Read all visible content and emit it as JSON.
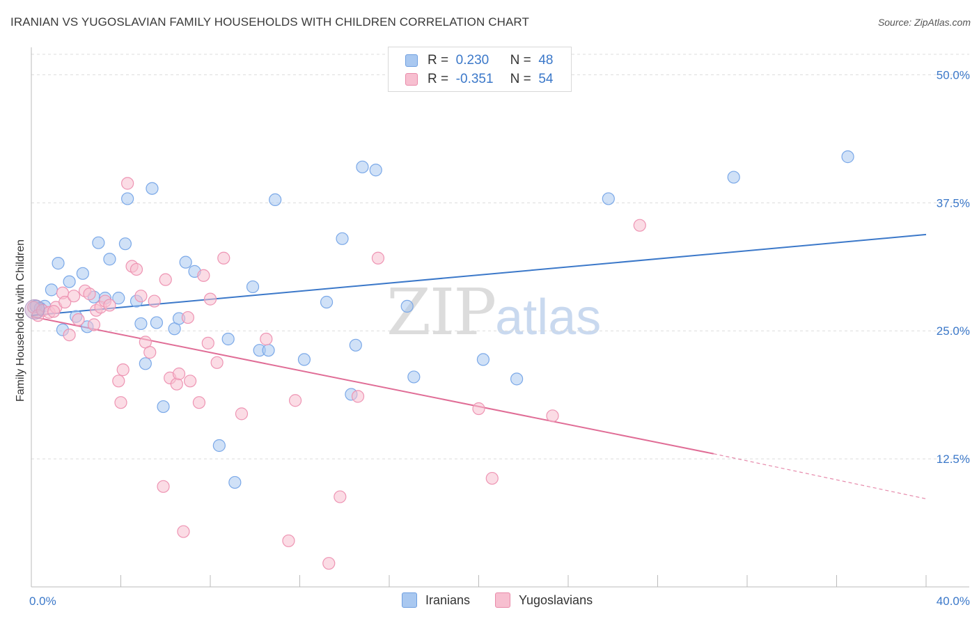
{
  "title": "IRANIAN VS YUGOSLAVIAN FAMILY HOUSEHOLDS WITH CHILDREN CORRELATION CHART",
  "source": "Source: ZipAtlas.com",
  "watermark": {
    "zip": "ZIP",
    "atlas": "atlas"
  },
  "legend": {
    "r_label": "R =",
    "n_label": "N =",
    "rows": [
      {
        "r": "0.230",
        "n": "48",
        "color": "#a9c8f0",
        "border": "#6f9fe0"
      },
      {
        "r": "-0.351",
        "n": "54",
        "color": "#f7bfd0",
        "border": "#e98aa9"
      }
    ]
  },
  "bottom_legend": [
    "Iranians",
    "Yugoslavians"
  ],
  "chart_data": {
    "type": "scatter",
    "title": "IRANIAN VS YUGOSLAVIAN FAMILY HOUSEHOLDS WITH CHILDREN CORRELATION CHART",
    "xlabel": "",
    "ylabel": "Family Households with Children",
    "xlim": [
      0,
      40
    ],
    "ylim": [
      0,
      52
    ],
    "x_tick_labels": [
      "0.0%",
      "40.0%"
    ],
    "y_ticks": [
      12.5,
      25.0,
      37.5,
      50.0
    ],
    "y_tick_labels": [
      "12.5%",
      "25.0%",
      "37.5%",
      "50.0%"
    ],
    "grid": true,
    "series": [
      {
        "name": "Iranians",
        "color": "#7aa8e8",
        "fill": "#a9c8f0",
        "trend": {
          "x": [
            0,
            40
          ],
          "y": [
            26.5,
            34.4
          ],
          "color": "#3b78c9"
        },
        "points": [
          [
            0.2,
            27.4
          ],
          [
            0.6,
            27.4
          ],
          [
            0.9,
            29.0
          ],
          [
            1.2,
            31.6
          ],
          [
            1.4,
            25.1
          ],
          [
            1.7,
            29.8
          ],
          [
            2.0,
            26.4
          ],
          [
            2.3,
            30.6
          ],
          [
            2.5,
            25.4
          ],
          [
            2.8,
            28.3
          ],
          [
            3.0,
            33.6
          ],
          [
            3.3,
            28.2
          ],
          [
            3.5,
            32.0
          ],
          [
            3.9,
            28.2
          ],
          [
            4.2,
            33.5
          ],
          [
            4.3,
            37.9
          ],
          [
            4.7,
            27.9
          ],
          [
            4.9,
            25.7
          ],
          [
            5.1,
            21.8
          ],
          [
            5.4,
            38.9
          ],
          [
            5.6,
            25.8
          ],
          [
            5.9,
            17.6
          ],
          [
            6.4,
            25.2
          ],
          [
            6.6,
            26.2
          ],
          [
            6.9,
            31.7
          ],
          [
            7.3,
            30.8
          ],
          [
            8.4,
            13.8
          ],
          [
            8.8,
            24.2
          ],
          [
            9.1,
            10.2
          ],
          [
            9.9,
            29.3
          ],
          [
            10.2,
            23.1
          ],
          [
            10.6,
            23.1
          ],
          [
            10.9,
            37.8
          ],
          [
            12.2,
            22.2
          ],
          [
            13.2,
            27.8
          ],
          [
            13.9,
            34.0
          ],
          [
            14.3,
            18.8
          ],
          [
            14.5,
            23.6
          ],
          [
            14.8,
            41.0
          ],
          [
            15.4,
            40.7
          ],
          [
            16.8,
            27.4
          ],
          [
            17.1,
            20.5
          ],
          [
            20.2,
            22.2
          ],
          [
            21.7,
            20.3
          ],
          [
            25.8,
            37.9
          ],
          [
            31.4,
            40.0
          ],
          [
            36.5,
            42.0
          ],
          [
            0.4,
            27.2
          ]
        ]
      },
      {
        "name": "Yugoslavians",
        "color": "#ee94b3",
        "fill": "#f7bfd0",
        "trend": {
          "x": [
            0,
            30.5
          ],
          "y": [
            26.4,
            13.0
          ],
          "color": "#e06d96",
          "dashed_to": [
            40,
            8.6
          ]
        },
        "points": [
          [
            0.1,
            27.3
          ],
          [
            0.3,
            26.5
          ],
          [
            0.5,
            27.0
          ],
          [
            0.8,
            26.8
          ],
          [
            1.1,
            27.3
          ],
          [
            1.4,
            28.7
          ],
          [
            1.5,
            27.8
          ],
          [
            1.7,
            24.6
          ],
          [
            1.9,
            28.4
          ],
          [
            2.1,
            26.1
          ],
          [
            2.4,
            28.9
          ],
          [
            2.6,
            28.6
          ],
          [
            2.8,
            25.6
          ],
          [
            2.9,
            27.0
          ],
          [
            3.1,
            27.3
          ],
          [
            3.3,
            27.9
          ],
          [
            3.5,
            27.5
          ],
          [
            3.9,
            20.1
          ],
          [
            4.0,
            18.0
          ],
          [
            4.1,
            21.2
          ],
          [
            4.3,
            39.4
          ],
          [
            4.5,
            31.3
          ],
          [
            4.7,
            31.0
          ],
          [
            4.9,
            28.4
          ],
          [
            5.1,
            23.9
          ],
          [
            5.3,
            22.9
          ],
          [
            5.5,
            27.9
          ],
          [
            5.9,
            9.8
          ],
          [
            6.0,
            30.0
          ],
          [
            6.2,
            20.4
          ],
          [
            6.5,
            19.8
          ],
          [
            6.6,
            20.8
          ],
          [
            6.8,
            5.4
          ],
          [
            7.0,
            26.3
          ],
          [
            7.1,
            20.1
          ],
          [
            7.5,
            18.0
          ],
          [
            7.7,
            30.4
          ],
          [
            7.9,
            23.8
          ],
          [
            8.0,
            28.1
          ],
          [
            8.3,
            21.9
          ],
          [
            8.6,
            32.1
          ],
          [
            9.4,
            16.9
          ],
          [
            10.5,
            24.2
          ],
          [
            11.5,
            4.5
          ],
          [
            11.8,
            18.2
          ],
          [
            13.3,
            2.3
          ],
          [
            13.8,
            8.8
          ],
          [
            14.6,
            18.6
          ],
          [
            15.5,
            32.1
          ],
          [
            20.0,
            17.4
          ],
          [
            20.6,
            10.6
          ],
          [
            23.3,
            16.7
          ],
          [
            27.2,
            35.3
          ],
          [
            1.0,
            26.9
          ]
        ]
      }
    ]
  }
}
